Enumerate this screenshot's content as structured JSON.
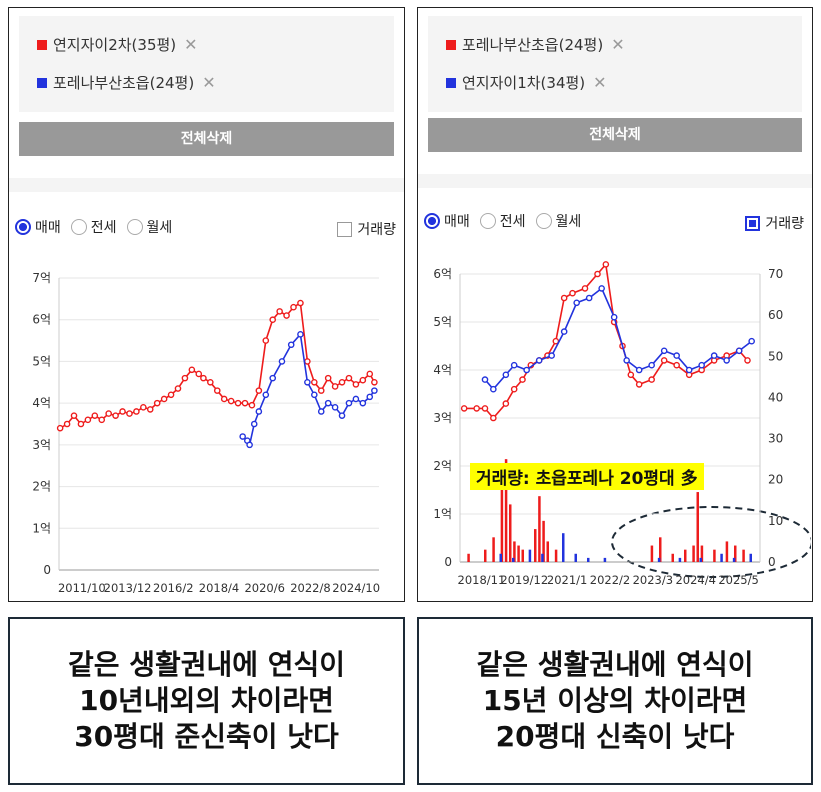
{
  "left_panel": {
    "legend": [
      {
        "label": "연지자이2차(35평)",
        "color": "#ee1c1c"
      },
      {
        "label": "포레나부산초읍(24평)",
        "color": "#2233dd"
      }
    ],
    "close_glyph": "✕",
    "delete_all_label": "전체삭제",
    "tabs": [
      {
        "label": "매매",
        "selected": true
      },
      {
        "label": "전세",
        "selected": false
      },
      {
        "label": "월세",
        "selected": false
      }
    ],
    "volume_label": "거래량",
    "volume_checked": false
  },
  "right_panel": {
    "legend": [
      {
        "label": "포레나부산초읍(24평)",
        "color": "#ee1c1c"
      },
      {
        "label": "연지자이1차(34평)",
        "color": "#2233dd"
      }
    ],
    "close_glyph": "✕",
    "delete_all_label": "전체삭제",
    "tabs": [
      {
        "label": "매매",
        "selected": true
      },
      {
        "label": "전세",
        "selected": false
      },
      {
        "label": "월세",
        "selected": false
      }
    ],
    "volume_label": "거래량",
    "volume_checked": true
  },
  "annotation": "거래량: 초읍포레나 20평대 多",
  "captions": {
    "left": [
      "같은 생활권내에 연식이",
      "10년내외의 차이라면",
      "30평대 준신축이 낫다"
    ],
    "right": [
      "같은 생활권내에 연식이",
      "15년 이상의 차이라면",
      "20평대 신축이 낫다"
    ]
  },
  "chart_data": [
    {
      "type": "line",
      "y_ticks": [
        "0",
        "1억",
        "2억",
        "3억",
        "4억",
        "5억",
        "6억",
        "7억"
      ],
      "ylim": [
        0,
        7
      ],
      "x_ticks": [
        "2011/10",
        "2013/12",
        "2016/2",
        "2018/4",
        "2020/6",
        "2022/8",
        "2024/10"
      ],
      "xlim": [
        2011.75,
        2025.6
      ],
      "series": [
        {
          "name": "연지자이2차(35평)",
          "color": "#ee1c1c",
          "x": [
            2011.8,
            2012.1,
            2012.4,
            2012.7,
            2013.0,
            2013.3,
            2013.6,
            2013.9,
            2014.2,
            2014.5,
            2014.8,
            2015.1,
            2015.4,
            2015.7,
            2016.0,
            2016.3,
            2016.6,
            2016.9,
            2017.2,
            2017.5,
            2017.8,
            2018.0,
            2018.3,
            2018.6,
            2018.9,
            2019.2,
            2019.5,
            2019.8,
            2020.1,
            2020.4,
            2020.7,
            2021.0,
            2021.3,
            2021.6,
            2021.9,
            2022.2,
            2022.5,
            2022.8,
            2023.1,
            2023.4,
            2023.7,
            2024.0,
            2024.3,
            2024.6,
            2024.9,
            2025.2,
            2025.4
          ],
          "y": [
            3.4,
            3.5,
            3.7,
            3.5,
            3.6,
            3.7,
            3.6,
            3.75,
            3.7,
            3.8,
            3.75,
            3.8,
            3.9,
            3.85,
            4.0,
            4.1,
            4.2,
            4.35,
            4.6,
            4.8,
            4.7,
            4.6,
            4.5,
            4.3,
            4.1,
            4.05,
            4.0,
            4.0,
            3.95,
            4.3,
            5.5,
            6.0,
            6.2,
            6.1,
            6.3,
            6.4,
            5.0,
            4.5,
            4.3,
            4.6,
            4.4,
            4.5,
            4.6,
            4.45,
            4.55,
            4.7,
            4.5
          ]
        },
        {
          "name": "포레나부산초읍(24평)",
          "color": "#2233dd",
          "x": [
            2019.7,
            2019.9,
            2020.0,
            2020.2,
            2020.4,
            2020.7,
            2021.0,
            2021.4,
            2021.8,
            2022.2,
            2022.5,
            2022.8,
            2023.1,
            2023.4,
            2023.7,
            2024.0,
            2024.3,
            2024.6,
            2024.9,
            2025.2,
            2025.4
          ],
          "y": [
            3.2,
            3.1,
            3.0,
            3.5,
            3.8,
            4.2,
            4.6,
            5.0,
            5.4,
            5.65,
            4.5,
            4.2,
            3.8,
            4.0,
            3.9,
            3.7,
            4.0,
            4.1,
            4.0,
            4.15,
            4.3
          ]
        }
      ]
    },
    {
      "type": "line",
      "y_ticks": [
        "0",
        "1억",
        "2억",
        "3억",
        "4억",
        "5억",
        "6억"
      ],
      "ylim": [
        0,
        6
      ],
      "y2_ticks": [
        "0",
        "10",
        "20",
        "30",
        "40",
        "50",
        "60",
        "70"
      ],
      "y2lim": [
        0,
        70
      ],
      "x_ticks": [
        "2018/11",
        "2019/12",
        "2021/1",
        "2022/2",
        "2023/3",
        "2024/4",
        "2025/5"
      ],
      "xlim": [
        2018.7,
        2025.9
      ],
      "series": [
        {
          "name": "포레나부산초읍(24평)",
          "color": "#ee1c1c",
          "x": [
            2018.8,
            2019.1,
            2019.3,
            2019.5,
            2019.8,
            2020.0,
            2020.2,
            2020.4,
            2020.6,
            2020.8,
            2021.0,
            2021.2,
            2021.4,
            2021.7,
            2022.0,
            2022.2,
            2022.4,
            2022.6,
            2022.8,
            2023.0,
            2023.3,
            2023.6,
            2023.9,
            2024.2,
            2024.5,
            2024.8,
            2025.1,
            2025.4,
            2025.6
          ],
          "y": [
            3.2,
            3.2,
            3.2,
            3.0,
            3.3,
            3.6,
            3.8,
            4.1,
            4.2,
            4.3,
            4.6,
            5.5,
            5.6,
            5.7,
            6.0,
            6.2,
            5.0,
            4.5,
            3.9,
            3.7,
            3.8,
            4.2,
            4.1,
            3.9,
            4.0,
            4.2,
            4.3,
            4.4,
            4.2
          ]
        },
        {
          "name": "연지자이1차(34평)",
          "color": "#2233dd",
          "x": [
            2019.3,
            2019.5,
            2019.8,
            2020.0,
            2020.3,
            2020.6,
            2020.9,
            2021.2,
            2021.5,
            2021.8,
            2022.1,
            2022.4,
            2022.7,
            2023.0,
            2023.3,
            2023.6,
            2023.9,
            2024.2,
            2024.5,
            2024.8,
            2025.1,
            2025.4,
            2025.7
          ],
          "y": [
            3.8,
            3.6,
            3.9,
            4.1,
            4.0,
            4.2,
            4.3,
            4.8,
            5.4,
            5.5,
            5.7,
            5.1,
            4.2,
            4.0,
            4.1,
            4.4,
            4.3,
            4.0,
            4.1,
            4.3,
            4.2,
            4.4,
            4.6
          ]
        }
      ],
      "volume_series": [
        {
          "name": "포레나부산초읍(24평)",
          "color": "#ee1c1c",
          "x": [
            2018.9,
            2019.3,
            2019.5,
            2019.7,
            2019.8,
            2019.9,
            2020.0,
            2020.1,
            2020.2,
            2020.5,
            2020.6,
            2020.7,
            2020.8,
            2021.0,
            2023.3,
            2023.5,
            2023.8,
            2024.1,
            2024.3,
            2024.4,
            2024.5,
            2024.8,
            2025.1,
            2025.3,
            2025.5
          ],
          "values": [
            2,
            3,
            6,
            18,
            25,
            14,
            5,
            4,
            3,
            8,
            16,
            10,
            5,
            3,
            4,
            6,
            2,
            3,
            4,
            17,
            4,
            3,
            5,
            4,
            3
          ]
        },
        {
          "name": "연지자이1차(34평)",
          "color": "#2233dd",
          "x": [
            2019.6,
            2019.9,
            2020.3,
            2020.6,
            2021.1,
            2021.4,
            2021.7,
            2022.1,
            2023.4,
            2023.9,
            2024.4,
            2024.9,
            2025.2,
            2025.6
          ],
          "values": [
            2,
            1,
            3,
            2,
            7,
            2,
            1,
            1,
            1,
            1,
            1,
            2,
            1,
            2
          ]
        }
      ]
    }
  ]
}
